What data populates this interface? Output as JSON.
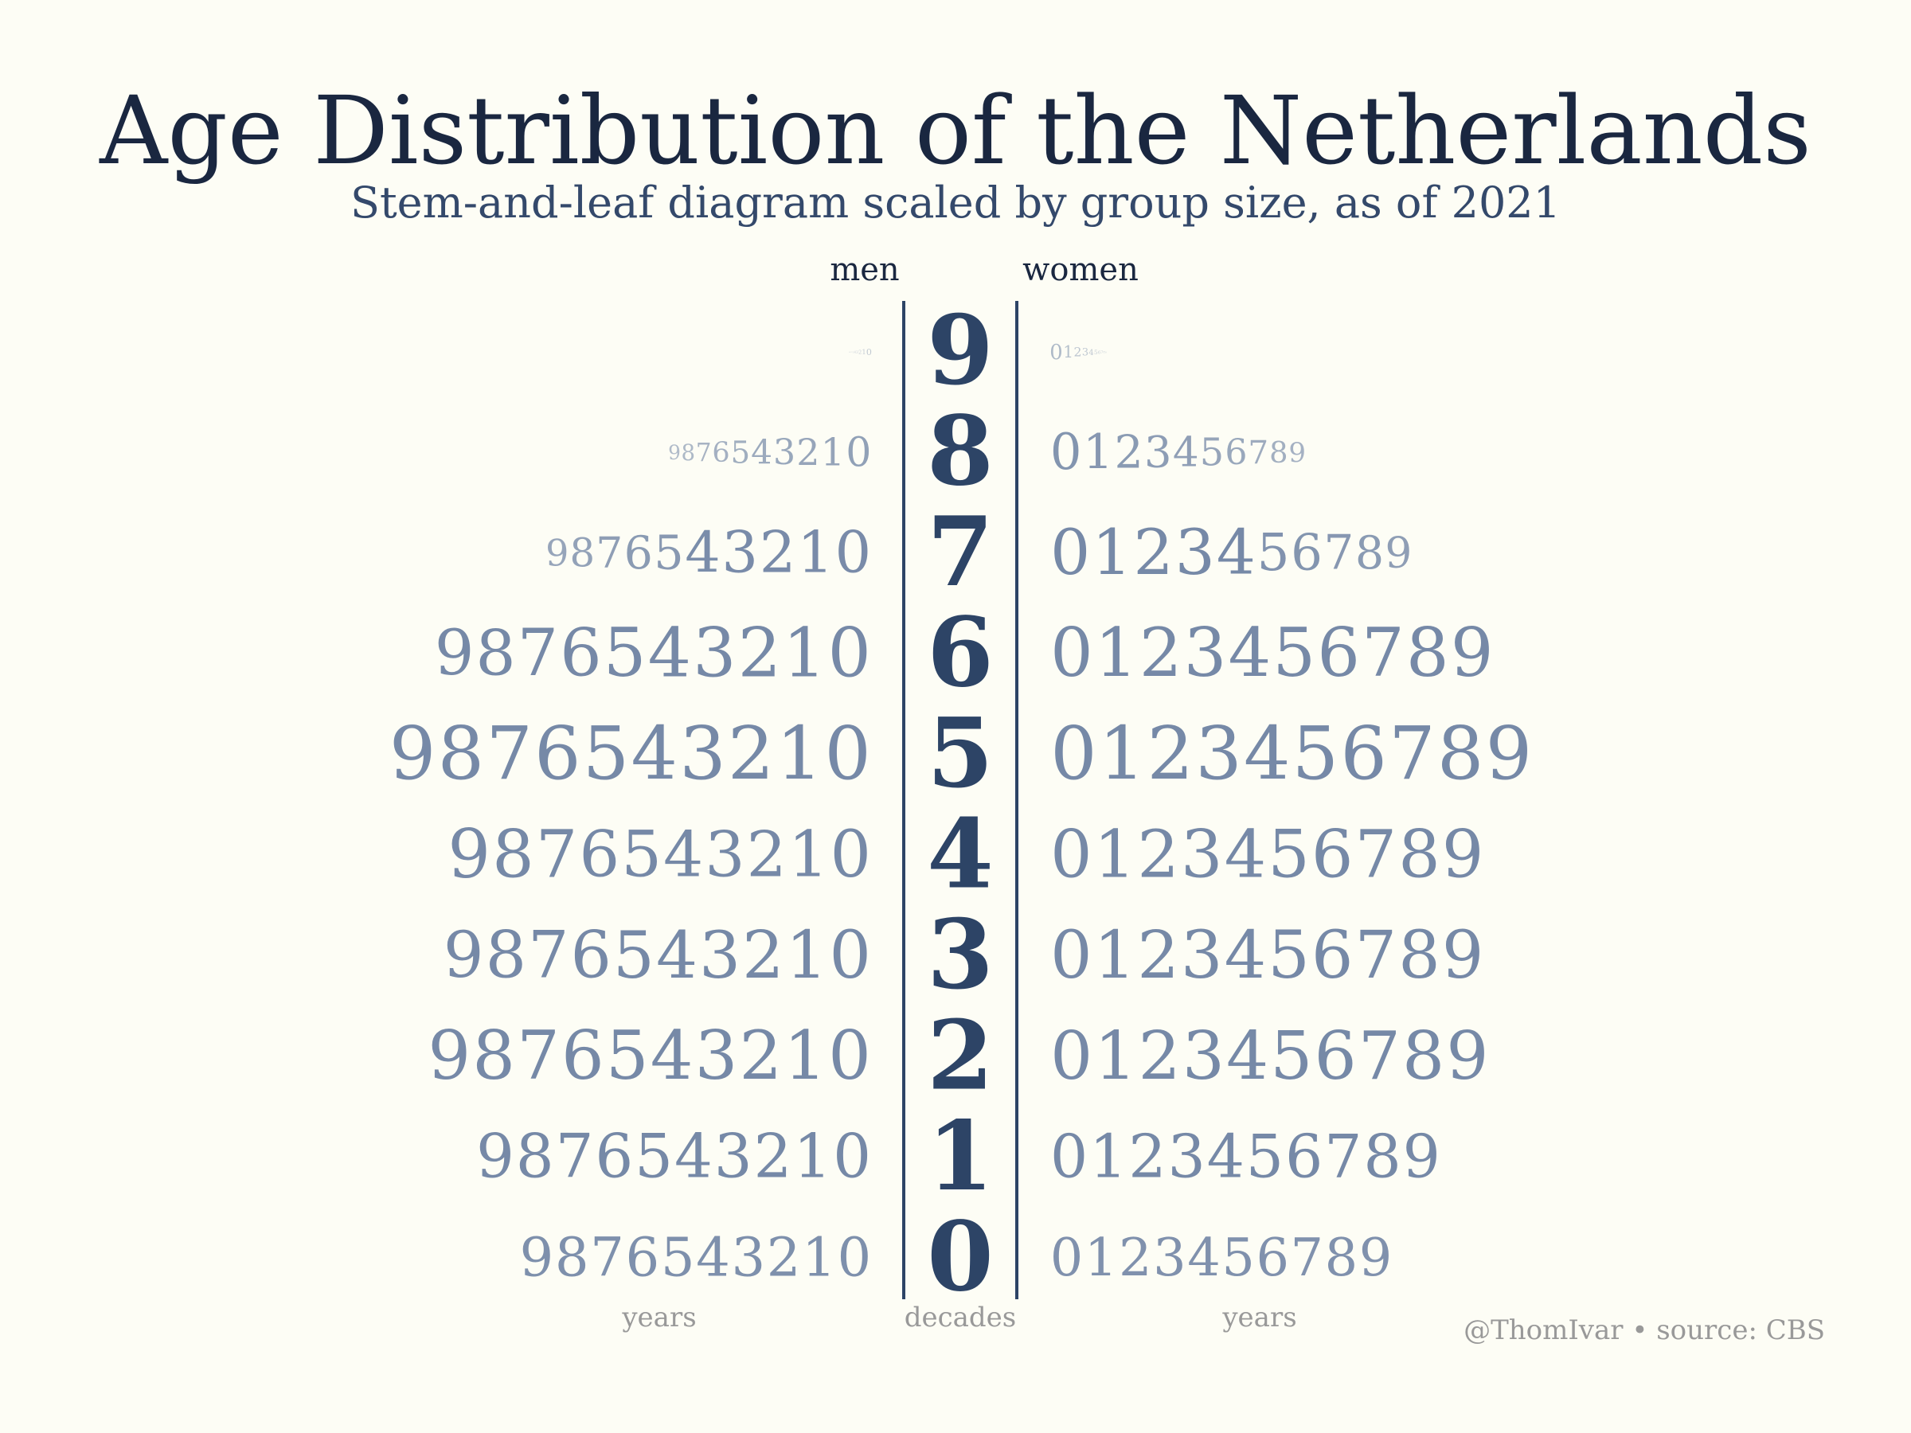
{
  "title": "Age Distribution of the Netherlands",
  "subtitle": "Stem-and-leaf diagram scaled by group size, as of 2021",
  "header_left": "men",
  "header_right": "women",
  "footer": {
    "left": "years",
    "center": "decades",
    "right": "years",
    "credit": "@ThomIvar • source: CBS"
  },
  "colors": {
    "stem": "#2d4466",
    "leaf": "#7689a7",
    "line": "#2d4466",
    "label": "#999999",
    "title": "#1a2740"
  },
  "chart_data": {
    "type": "table",
    "stems": [
      "9",
      "8",
      "7",
      "6",
      "5",
      "4",
      "3",
      "2",
      "1",
      "0"
    ],
    "leaves": [
      "0",
      "1",
      "2",
      "3",
      "4",
      "5",
      "6",
      "7",
      "8",
      "9"
    ],
    "relative_size_scale": "1 = largest leaf",
    "series": [
      {
        "name": "men",
        "sizes": [
          [
            0.12,
            0.09,
            0.07,
            0.05,
            0.04,
            0.03,
            0.02,
            0.02,
            0.01,
            0.01
          ],
          [
            0.55,
            0.52,
            0.5,
            0.48,
            0.46,
            0.42,
            0.38,
            0.34,
            0.3,
            0.27
          ],
          [
            0.78,
            0.78,
            0.78,
            0.78,
            0.76,
            0.64,
            0.62,
            0.58,
            0.54,
            0.5
          ],
          [
            0.93,
            0.93,
            0.93,
            0.93,
            0.93,
            0.92,
            0.9,
            0.88,
            0.86,
            0.85
          ],
          [
            1.0,
            1.0,
            1.0,
            1.0,
            1.0,
            1.0,
            1.0,
            1.0,
            1.0,
            1.0
          ],
          [
            0.88,
            0.87,
            0.86,
            0.86,
            0.86,
            0.87,
            0.87,
            0.9,
            0.9,
            0.92
          ],
          [
            0.9,
            0.9,
            0.9,
            0.89,
            0.89,
            0.89,
            0.88,
            0.88,
            0.88,
            0.87
          ],
          [
            0.92,
            0.92,
            0.92,
            0.92,
            0.92,
            0.92,
            0.92,
            0.92,
            0.92,
            0.92
          ],
          [
            0.82,
            0.82,
            0.82,
            0.82,
            0.82,
            0.82,
            0.82,
            0.82,
            0.82,
            0.82
          ],
          [
            0.73,
            0.73,
            0.73,
            0.73,
            0.73,
            0.73,
            0.73,
            0.73,
            0.73,
            0.73
          ]
        ]
      },
      {
        "name": "women",
        "sizes": [
          [
            0.28,
            0.22,
            0.17,
            0.14,
            0.11,
            0.08,
            0.06,
            0.05,
            0.04,
            0.03
          ],
          [
            0.68,
            0.65,
            0.62,
            0.59,
            0.56,
            0.52,
            0.48,
            0.44,
            0.4,
            0.37
          ],
          [
            0.86,
            0.86,
            0.86,
            0.86,
            0.84,
            0.7,
            0.68,
            0.65,
            0.62,
            0.58
          ],
          [
            0.92,
            0.92,
            0.92,
            0.92,
            0.92,
            0.92,
            0.92,
            0.92,
            0.92,
            0.92
          ],
          [
            1.0,
            1.0,
            1.0,
            1.0,
            1.0,
            1.0,
            1.0,
            1.0,
            1.0,
            1.0
          ],
          [
            0.9,
            0.9,
            0.9,
            0.9,
            0.9,
            0.9,
            0.9,
            0.9,
            0.9,
            0.9
          ],
          [
            0.9,
            0.9,
            0.9,
            0.9,
            0.9,
            0.9,
            0.9,
            0.9,
            0.9,
            0.9
          ],
          [
            0.91,
            0.91,
            0.91,
            0.91,
            0.91,
            0.91,
            0.91,
            0.91,
            0.91,
            0.91
          ],
          [
            0.81,
            0.81,
            0.81,
            0.81,
            0.81,
            0.81,
            0.81,
            0.81,
            0.81,
            0.81
          ],
          [
            0.71,
            0.71,
            0.71,
            0.71,
            0.71,
            0.71,
            0.71,
            0.71,
            0.71,
            0.71
          ]
        ]
      }
    ]
  }
}
